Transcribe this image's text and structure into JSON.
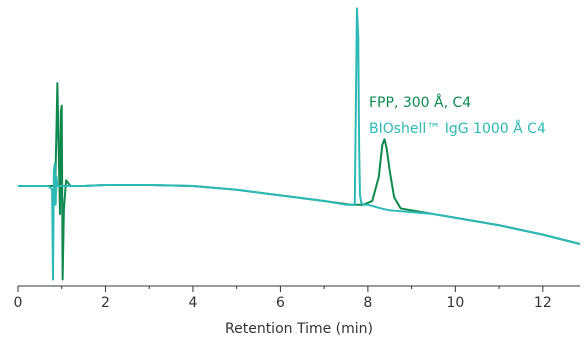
{
  "chart_data": {
    "type": "line",
    "title": "",
    "xlabel": "Retention Time (min)",
    "ylabel": "",
    "xlim": [
      0,
      12.85
    ],
    "ylim": [
      -0.6,
      1.0
    ],
    "grid": false,
    "x_ticks": [
      0,
      2,
      4,
      6,
      8,
      10,
      12
    ],
    "legend_position": "right, beside the peaks",
    "series": [
      {
        "name": "FPP, 300 Å, C4",
        "color": "#0e8a4f",
        "x": [
          0.0,
          0.75,
          0.85,
          0.88,
          0.9,
          0.93,
          0.96,
          0.98,
          1.0,
          1.02,
          1.05,
          1.1,
          1.2,
          1.5,
          2.0,
          3.0,
          4.0,
          5.0,
          6.0,
          7.0,
          7.6,
          7.9,
          8.1,
          8.25,
          8.33,
          8.38,
          8.43,
          8.5,
          8.6,
          8.75,
          9.0,
          9.5,
          10.0,
          11.0,
          12.0,
          12.85
        ],
        "y": [
          0.0,
          0.0,
          0.0,
          0.3,
          0.55,
          0.2,
          -0.15,
          0.4,
          0.43,
          -0.5,
          -0.12,
          0.03,
          0.0,
          0.0,
          0.005,
          0.005,
          0.0,
          -0.02,
          -0.05,
          -0.08,
          -0.1,
          -0.1,
          -0.08,
          0.05,
          0.22,
          0.25,
          0.2,
          0.08,
          -0.06,
          -0.12,
          -0.13,
          -0.15,
          -0.17,
          -0.21,
          -0.26,
          -0.31
        ]
      },
      {
        "name": "BIOshell™ IgG 1000 Å C4",
        "color": "#2dbab6",
        "x": [
          0.0,
          0.7,
          0.78,
          0.8,
          0.82,
          0.84,
          0.86,
          0.88,
          0.9,
          0.95,
          1.0,
          1.1,
          1.5,
          2.0,
          3.0,
          4.0,
          5.0,
          6.0,
          7.0,
          7.5,
          7.7,
          7.75,
          7.78,
          7.8,
          7.82,
          7.85,
          7.9,
          8.0,
          8.3,
          8.5,
          9.0,
          9.5,
          10.0,
          11.0,
          12.0,
          12.85
        ],
        "y": [
          0.0,
          0.0,
          -0.02,
          -0.5,
          0.08,
          0.12,
          -0.1,
          0.05,
          0.0,
          0.0,
          0.0,
          0.0,
          0.0,
          0.005,
          0.005,
          0.0,
          -0.02,
          -0.05,
          -0.08,
          -0.1,
          -0.1,
          0.95,
          0.8,
          0.2,
          -0.05,
          -0.09,
          -0.1,
          -0.1,
          -0.12,
          -0.13,
          -0.14,
          -0.15,
          -0.17,
          -0.21,
          -0.26,
          -0.31
        ]
      }
    ]
  }
}
